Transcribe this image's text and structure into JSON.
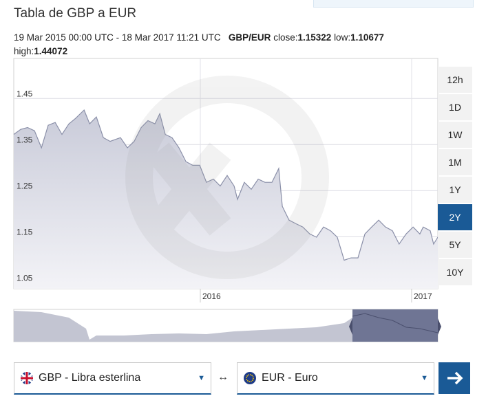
{
  "header": {
    "title": "Tabla de GBP a EUR",
    "period": "19 Mar 2015 00:00 UTC - 18 Mar 2017 11:21 UTC",
    "pair": "GBP/EUR",
    "close_label": "close:",
    "close": "1.15322",
    "low_label": "low:",
    "low": "1.10677",
    "high_label": "high:",
    "high": "1.44072"
  },
  "chart_data": {
    "type": "area",
    "x": [
      2015.117,
      2015.15,
      2015.182,
      2015.215,
      2015.248,
      2015.28,
      2015.313,
      2015.345,
      2015.378,
      2015.41,
      2015.45,
      2015.476,
      2015.508,
      2015.541,
      2015.573,
      2015.622,
      2015.655,
      2015.687,
      2015.72,
      2015.752,
      2015.785,
      2015.808,
      2015.834,
      2015.866,
      2015.899,
      2015.932,
      2015.964,
      2015.997,
      2016.029,
      2016.062,
      2016.094,
      2016.127,
      2016.16,
      2016.176,
      2016.208,
      2016.241,
      2016.274,
      2016.306,
      2016.339,
      2016.371,
      2016.388,
      2016.42,
      2016.453,
      2016.485,
      2016.518,
      2016.55,
      2016.583,
      2016.616,
      2016.648,
      2016.681,
      2016.713,
      2016.746,
      2016.779,
      2016.811,
      2016.844,
      2016.876,
      2016.909,
      2016.941,
      2016.974,
      2017.007,
      2017.039,
      2017.055,
      2017.088,
      2017.104,
      2017.124
    ],
    "values": [
      1.372,
      1.383,
      1.387,
      1.38,
      1.343,
      1.392,
      1.398,
      1.372,
      1.395,
      1.407,
      1.425,
      1.395,
      1.41,
      1.365,
      1.357,
      1.365,
      1.343,
      1.357,
      1.387,
      1.402,
      1.395,
      1.417,
      1.372,
      1.365,
      1.343,
      1.313,
      1.305,
      1.305,
      1.268,
      1.275,
      1.26,
      1.283,
      1.26,
      1.231,
      1.268,
      1.253,
      1.275,
      1.268,
      1.268,
      1.298,
      1.216,
      1.186,
      1.178,
      1.171,
      1.156,
      1.149,
      1.171,
      1.163,
      1.149,
      1.099,
      1.104,
      1.104,
      1.156,
      1.171,
      1.186,
      1.171,
      1.163,
      1.134,
      1.156,
      1.171,
      1.156,
      1.171,
      1.163,
      1.134,
      1.149
    ],
    "color": "#8a8fa8",
    "xlim": [
      2015.117,
      2017.124
    ],
    "xticks": [
      2016,
      2017
    ],
    "ylim": [
      1.037,
      1.537
    ],
    "yticks": [
      1.05,
      1.15,
      1.25,
      1.35,
      1.45
    ],
    "grid": true
  },
  "range_buttons": [
    "12h",
    "1D",
    "1W",
    "1M",
    "1Y",
    "2Y",
    "5Y",
    "10Y"
  ],
  "active_range": "2Y",
  "converter": {
    "from": "GBP - Libra esterlina",
    "swap": "↔",
    "to": "EUR - Euro"
  }
}
